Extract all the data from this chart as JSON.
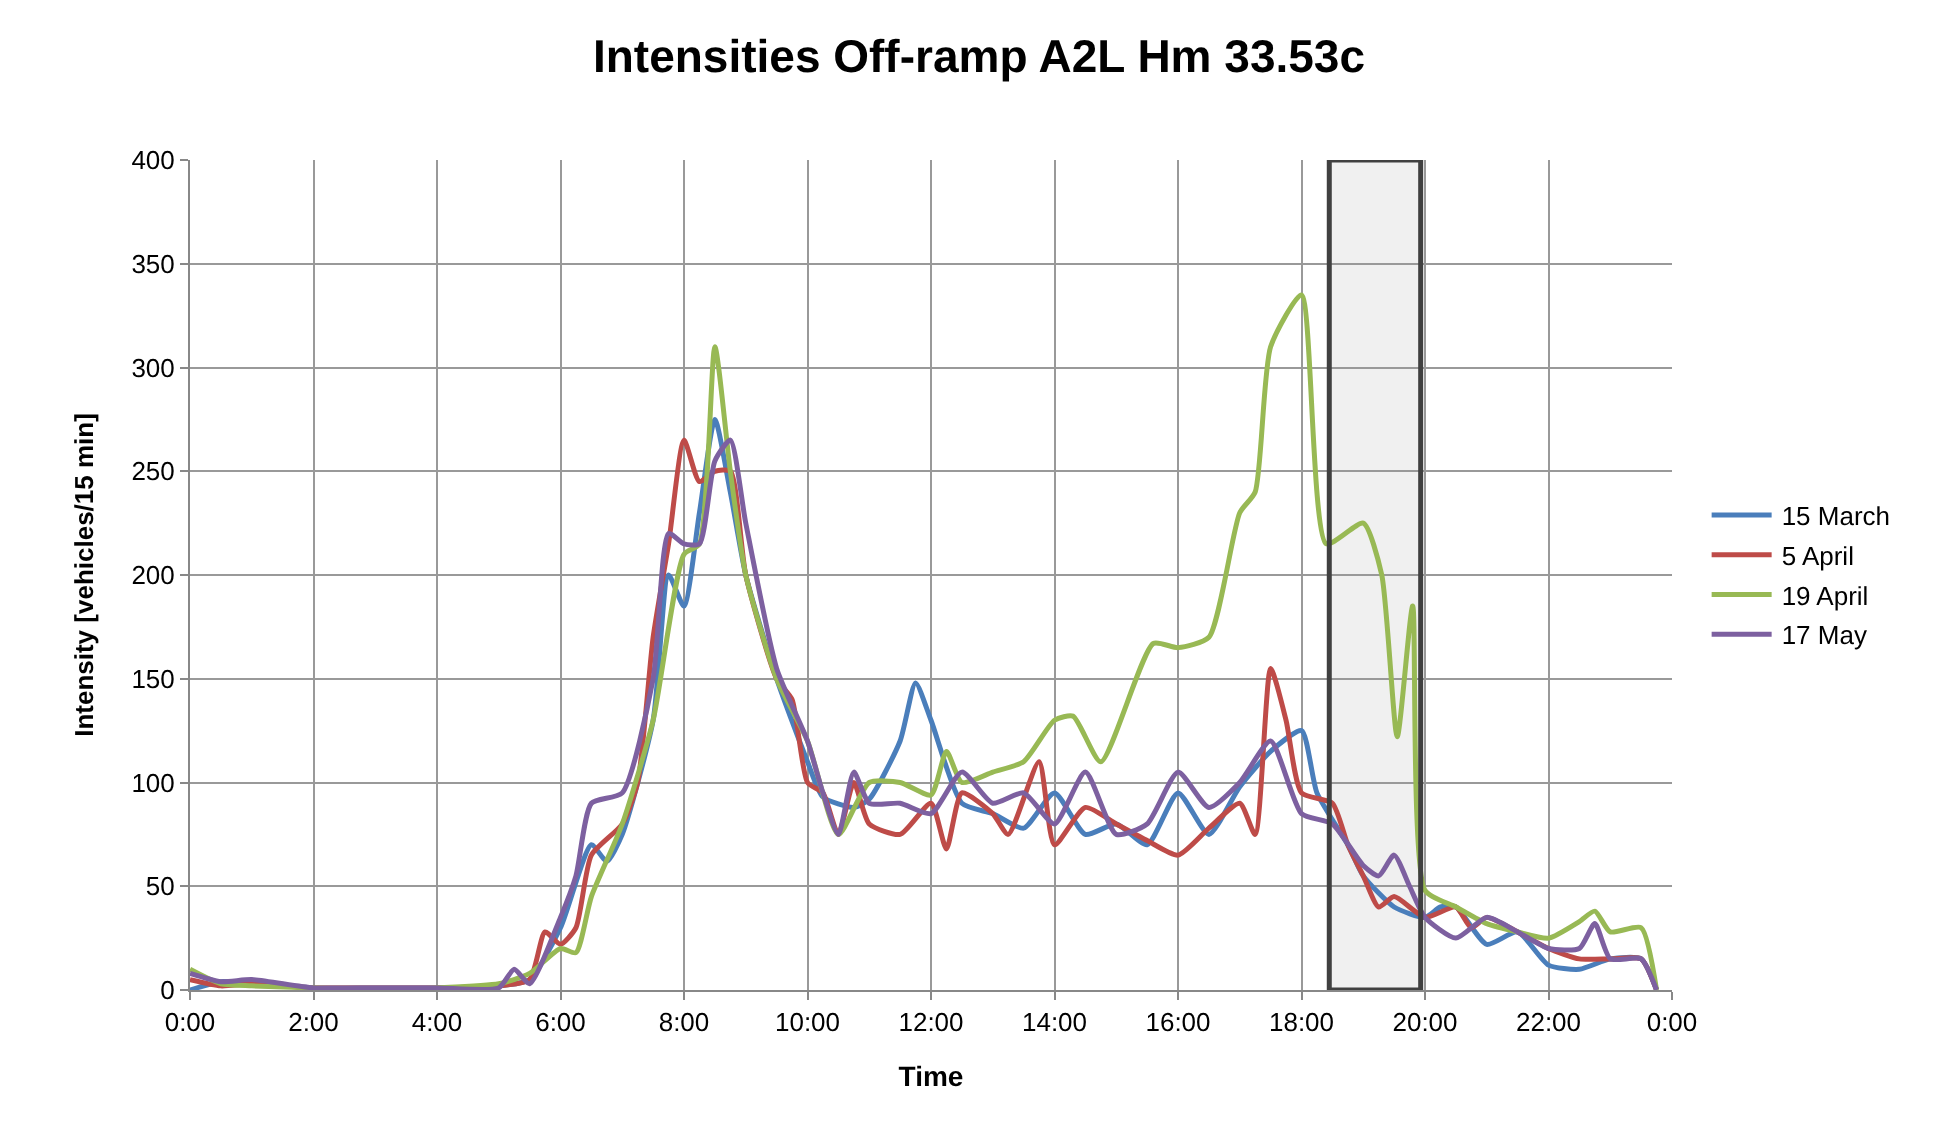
{
  "chart_data": {
    "type": "line",
    "title": "Intensities Off-ramp A2L Hm 33.53c",
    "xlabel": "Time",
    "ylabel": "Intensity [vehicles/15 min]",
    "xlim": [
      0,
      24
    ],
    "ylim": [
      0,
      400
    ],
    "xticks": [
      {
        "value": 0,
        "label": "0:00"
      },
      {
        "value": 2,
        "label": "2:00"
      },
      {
        "value": 4,
        "label": "4:00"
      },
      {
        "value": 6,
        "label": "6:00"
      },
      {
        "value": 8,
        "label": "8:00"
      },
      {
        "value": 10,
        "label": "10:00"
      },
      {
        "value": 12,
        "label": "12:00"
      },
      {
        "value": 14,
        "label": "14:00"
      },
      {
        "value": 16,
        "label": "16:00"
      },
      {
        "value": 18,
        "label": "18:00"
      },
      {
        "value": 20,
        "label": "20:00"
      },
      {
        "value": 22,
        "label": "22:00"
      },
      {
        "value": 24,
        "label": "0:00"
      }
    ],
    "yticks": [
      0,
      50,
      100,
      150,
      200,
      250,
      300,
      350,
      400
    ],
    "grid": true,
    "legend": "right",
    "marker": "none",
    "line_style": "solid",
    "bands": [
      {
        "axis": "x",
        "from": 18.45,
        "to": 19.93,
        "color": "#404040"
      }
    ],
    "series": [
      {
        "name": "15 March",
        "color": "#4a7ebb",
        "x": [
          0,
          0.5,
          1,
          1.5,
          2,
          3,
          4,
          5,
          5.5,
          6,
          6.5,
          6.75,
          7,
          7.5,
          7.75,
          8,
          8.25,
          8.5,
          8.75,
          9,
          9.5,
          10,
          10.25,
          10.75,
          11,
          11.5,
          11.75,
          12,
          12.5,
          13,
          13.5,
          14,
          14.5,
          15,
          15.5,
          16,
          16.5,
          17,
          17.5,
          18,
          18.25,
          18.75,
          19,
          19.5,
          20,
          20.25,
          20.5,
          21,
          21.5,
          22,
          22.5,
          23,
          23.5,
          23.75
        ],
        "values": [
          0,
          4,
          3,
          2,
          1,
          1,
          1,
          2,
          5,
          30,
          70,
          62,
          75,
          130,
          200,
          185,
          230,
          275,
          240,
          200,
          150,
          110,
          93,
          88,
          92,
          120,
          148,
          130,
          90,
          85,
          78,
          95,
          75,
          80,
          70,
          95,
          75,
          98,
          115,
          125,
          95,
          70,
          55,
          40,
          35,
          40,
          40,
          22,
          28,
          12,
          10,
          15,
          15,
          0
        ]
      },
      {
        "name": "5 April",
        "color": "#be4b48",
        "x": [
          0,
          0.5,
          1,
          2,
          3,
          4,
          5,
          5.5,
          5.75,
          6,
          6.25,
          6.5,
          7,
          7.25,
          7.5,
          7.75,
          8,
          8.25,
          8.5,
          8.75,
          9,
          9.5,
          9.75,
          10,
          10.25,
          10.5,
          10.75,
          11,
          11.5,
          12,
          12.25,
          12.5,
          13,
          13.25,
          13.75,
          14,
          14.5,
          15,
          15.5,
          16,
          16.5,
          17,
          17.25,
          17.5,
          17.75,
          18,
          18.5,
          18.75,
          19,
          19.25,
          19.5,
          20,
          20.5,
          20.75,
          21,
          21.5,
          22,
          22.5,
          23,
          23.5,
          23.75
        ],
        "values": [
          5,
          2,
          3,
          1,
          1,
          1,
          2,
          5,
          28,
          22,
          30,
          65,
          80,
          100,
          170,
          215,
          265,
          245,
          250,
          250,
          200,
          150,
          140,
          100,
          95,
          75,
          100,
          80,
          75,
          90,
          68,
          95,
          85,
          75,
          110,
          70,
          88,
          80,
          72,
          65,
          78,
          90,
          75,
          155,
          130,
          95,
          90,
          70,
          55,
          40,
          45,
          35,
          40,
          30,
          35,
          28,
          20,
          15,
          15,
          15,
          0
        ]
      },
      {
        "name": "19 April",
        "color": "#98b954",
        "x": [
          0,
          0.5,
          1,
          2,
          3,
          4,
          5,
          5.5,
          6,
          6.25,
          6.5,
          7,
          7.5,
          8,
          8.25,
          8.5,
          8.75,
          9,
          9.5,
          10,
          10.5,
          11,
          11.5,
          12,
          12.25,
          12.5,
          13,
          13.5,
          14,
          14.3,
          14.75,
          15.6,
          16,
          16.5,
          17,
          17.25,
          17.5,
          18,
          18.4,
          19,
          19.3,
          19.55,
          19.8,
          20,
          20.5,
          21,
          21.5,
          22,
          22.5,
          22.75,
          23,
          23.5,
          23.75
        ],
        "values": [
          10,
          3,
          2,
          1,
          0,
          1,
          3,
          8,
          20,
          18,
          45,
          80,
          130,
          210,
          215,
          310,
          250,
          200,
          150,
          120,
          75,
          100,
          100,
          94,
          115,
          100,
          105,
          110,
          130,
          132,
          110,
          167,
          165,
          170,
          230,
          240,
          310,
          335,
          215,
          225,
          200,
          122,
          185,
          48,
          40,
          32,
          28,
          25,
          33,
          38,
          28,
          30,
          0
        ]
      },
      {
        "name": "17 May",
        "color": "#7d60a0",
        "x": [
          0,
          0.5,
          1,
          2,
          3,
          4,
          5,
          5.25,
          5.5,
          6,
          6.25,
          6.5,
          7,
          7.5,
          7.75,
          8,
          8.25,
          8.5,
          8.75,
          9,
          9.5,
          10,
          10.25,
          10.5,
          10.75,
          11,
          11.5,
          12,
          12.5,
          13,
          13.5,
          14,
          14.5,
          15,
          15.5,
          16,
          16.5,
          17,
          17.5,
          18,
          18.5,
          19,
          19.25,
          19.5,
          19.75,
          20,
          20.5,
          21,
          21.5,
          22,
          22.5,
          22.75,
          23,
          23.5,
          23.75
        ],
        "values": [
          8,
          4,
          5,
          1,
          1,
          1,
          1,
          10,
          3,
          35,
          55,
          90,
          95,
          150,
          220,
          215,
          215,
          255,
          265,
          225,
          155,
          120,
          95,
          75,
          105,
          90,
          90,
          85,
          105,
          90,
          95,
          80,
          105,
          75,
          80,
          105,
          88,
          100,
          120,
          85,
          80,
          60,
          55,
          65,
          50,
          35,
          25,
          35,
          28,
          20,
          20,
          32,
          15,
          15,
          0
        ]
      }
    ]
  }
}
